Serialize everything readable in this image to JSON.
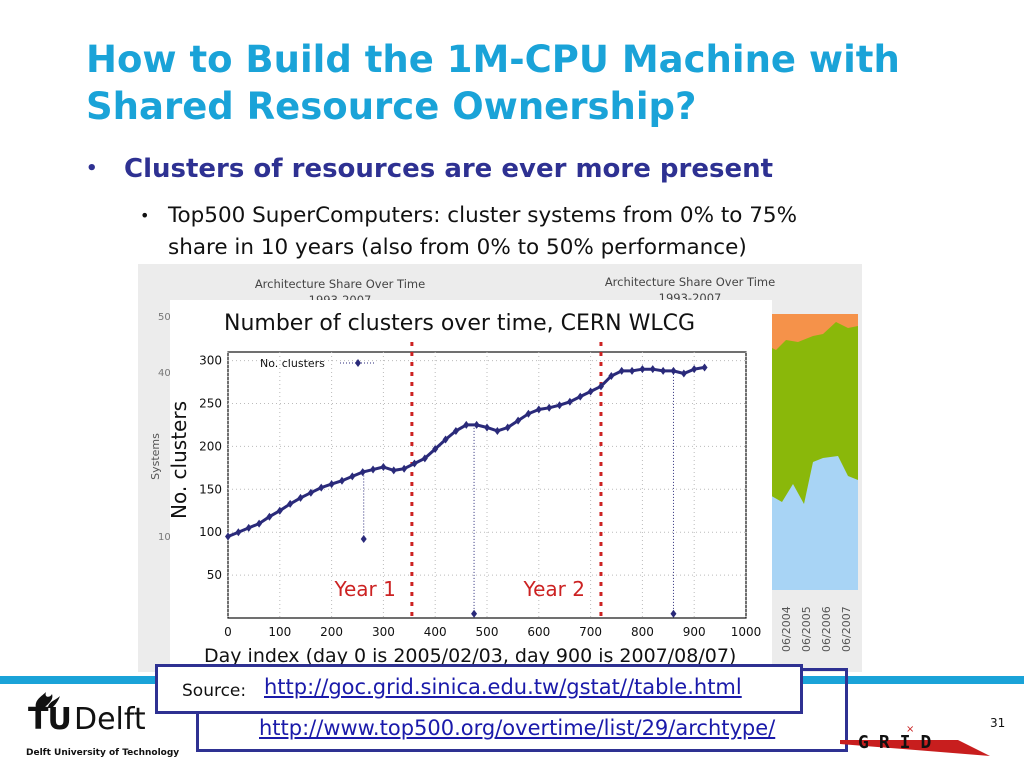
{
  "slide": {
    "title_line1": "How to Build the 1M-CPU Machine with",
    "title_line2": "Shared Resource Ownership?",
    "bullet1": "Clusters of resources are ever more present",
    "bullet2_line1": "Top500 SuperComputers: cluster systems from 0% to 75%",
    "bullet2_line2": "share in 10 years (also from 0% to 50% performance)",
    "bullet_glyph": "•",
    "source_label": "Source:",
    "source_link1": "http://goc.grid.sinica.edu.tw/gstat//table.html",
    "source_link2": "http://www.top500.org/overtime/list/29/archtype/",
    "logo_tu": "TU",
    "logo_delft": "Delft",
    "logo_subtitle": "Delft University of Technology",
    "grid_logo_text": "GRID",
    "page_number": "31"
  },
  "background_charts": {
    "left_title_line1": "Architecture Share Over Time",
    "left_title_line2": "1993-2007",
    "right_title_line1": "Architecture Share Over Time",
    "right_title_line2": "1993-2007",
    "ylabel": "Systems",
    "yticks_visible": [
      "50",
      "40",
      "10"
    ],
    "date_labels": [
      "06/2004",
      "06/2005",
      "06/2006",
      "06/2007"
    ],
    "colors": {
      "orange": "#f5924a",
      "green": "#8ab80a",
      "lightblue": "#a8d4f5"
    }
  },
  "chart_data": {
    "type": "line",
    "title": "Number of clusters over time, CERN WLCG",
    "xlabel": "Day index (day 0 is 2005/02/03, day 900 is 2007/08/07)",
    "ylabel": "No. clusters",
    "xlim": [
      0,
      1000
    ],
    "ylim": [
      0,
      310
    ],
    "xticks": [
      0,
      100,
      200,
      300,
      400,
      500,
      600,
      700,
      800,
      900,
      1000
    ],
    "yticks": [
      50,
      100,
      150,
      200,
      250,
      300
    ],
    "legend": "No. clusters",
    "legend_position": "top-left",
    "grid": true,
    "series": [
      {
        "name": "No. clusters",
        "color": "#2a2a7a",
        "x": [
          0,
          20,
          40,
          60,
          80,
          100,
          120,
          140,
          160,
          180,
          200,
          220,
          240,
          260,
          280,
          300,
          320,
          340,
          360,
          380,
          400,
          420,
          440,
          460,
          480,
          500,
          520,
          540,
          560,
          580,
          600,
          620,
          640,
          660,
          680,
          700,
          720,
          740,
          760,
          780,
          800,
          820,
          840,
          860,
          880,
          900,
          920
        ],
        "y": [
          95,
          100,
          105,
          110,
          118,
          125,
          133,
          140,
          146,
          152,
          156,
          160,
          165,
          170,
          173,
          176,
          172,
          174,
          180,
          186,
          197,
          208,
          218,
          225,
          225,
          222,
          218,
          222,
          230,
          238,
          243,
          245,
          248,
          252,
          258,
          264,
          270,
          282,
          288,
          288,
          290,
          290,
          288,
          288,
          285,
          290,
          292
        ]
      }
    ],
    "dips": [
      {
        "x": 262,
        "y": 92
      },
      {
        "x": 475,
        "y": 5
      },
      {
        "x": 860,
        "y": 5
      }
    ],
    "vlines": [
      {
        "x": 355,
        "label": "Year 1",
        "color": "#cc2222"
      },
      {
        "x": 720,
        "label": "Year 2",
        "color": "#cc2222"
      }
    ]
  }
}
